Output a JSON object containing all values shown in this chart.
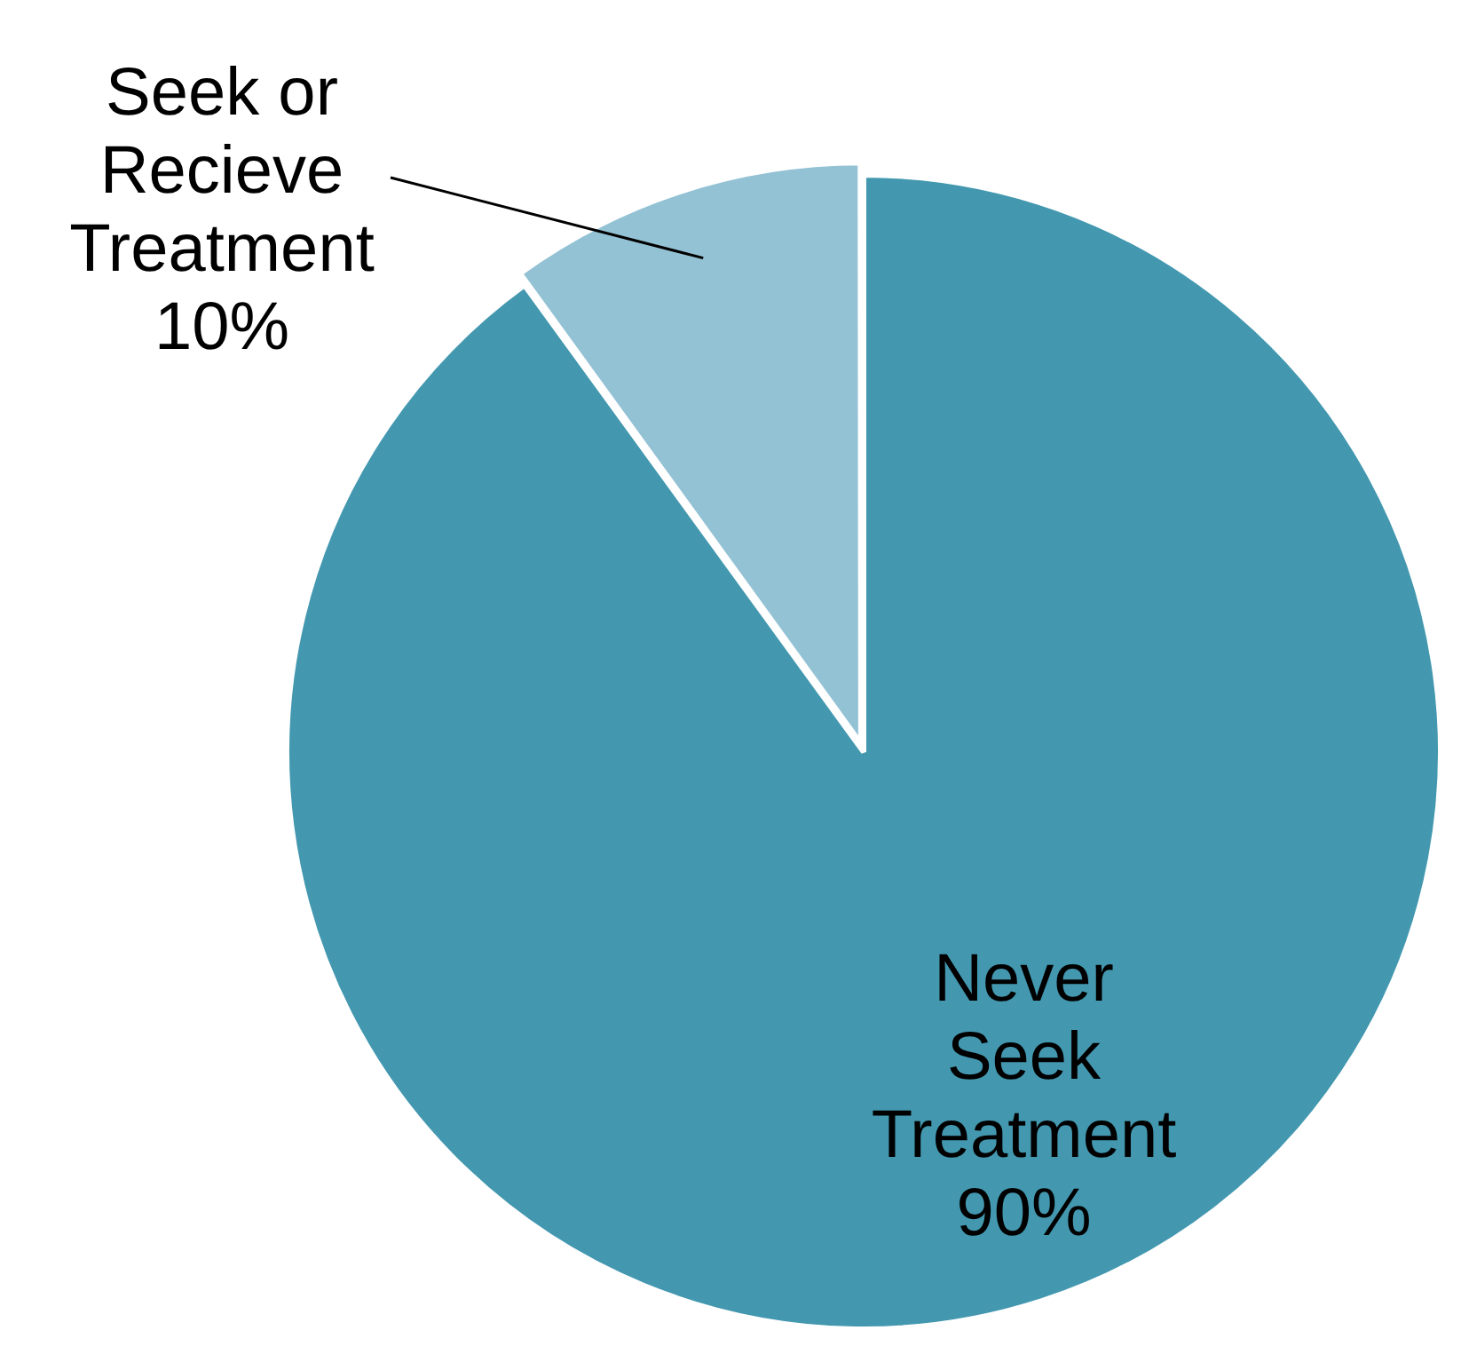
{
  "chart_data": {
    "type": "pie",
    "categories": [
      "Never Seek Treatment",
      "Seek or Recieve Treatment"
    ],
    "values": [
      90,
      10
    ],
    "colors": [
      "#4398b0",
      "#93c2d5"
    ],
    "value_labels": [
      "90%",
      "10%"
    ],
    "legend": false
  }
}
